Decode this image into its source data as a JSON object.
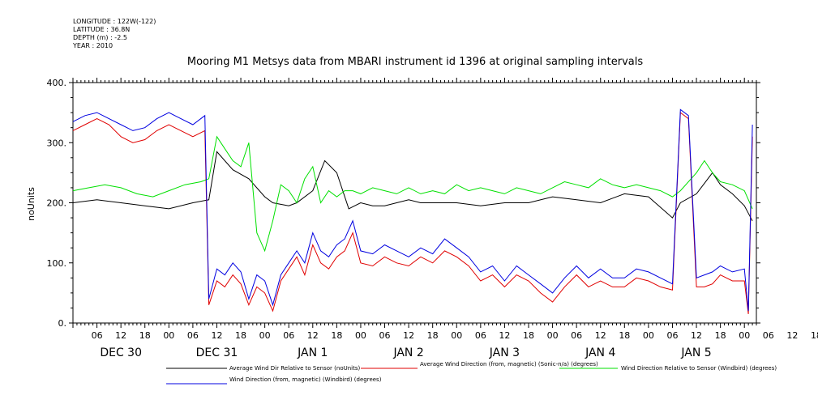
{
  "header": {
    "longitude": "LONGITUDE : 122W(-122)",
    "latitude": "LATITUDE : 36.8N",
    "depth": "DEPTH (m) : -2.5",
    "year": "YEAR : 2010"
  },
  "chart_data": {
    "type": "line",
    "title": "Mooring M1 Metsys data from MBARI instrument id 1396 at original sampling intervals",
    "ylabel": "noUnits",
    "xlabel": "",
    "ylim": [
      0,
      400
    ],
    "xlim_hours": [
      0,
      171
    ],
    "y_ticks": [
      0,
      100,
      200,
      300,
      400
    ],
    "y_tick_labels": [
      "0.",
      "100.",
      "200.",
      "300.",
      "400."
    ],
    "x_hour_tick_labels": [
      "06",
      "12",
      "18",
      "00",
      "06",
      "12",
      "18",
      "00",
      "06",
      "12",
      "18",
      "00",
      "06",
      "12",
      "18",
      "00",
      "06",
      "12",
      "18",
      "00",
      "06",
      "12",
      "18",
      "00",
      "06",
      "12",
      "18",
      "00",
      "06",
      "12",
      "18",
      "00"
    ],
    "x_day_labels": [
      "DEC 30",
      "DEC 31",
      "JAN  1",
      "JAN  2",
      "JAN  3",
      "JAN  4",
      "JAN  5"
    ],
    "grid": false,
    "legend_position": "bottom",
    "series": [
      {
        "name": "Average Wind Dir Relative to Sensor (noUnits)",
        "color": "#000000",
        "x": [
          0,
          6,
          12,
          18,
          24,
          30,
          34,
          36,
          40,
          44,
          48,
          50,
          54,
          56,
          60,
          63,
          66,
          69,
          72,
          75,
          78,
          81,
          84,
          87,
          90,
          96,
          102,
          108,
          114,
          120,
          126,
          132,
          138,
          144,
          150,
          152,
          156,
          160,
          162,
          165,
          168,
          170
        ],
        "y": [
          200,
          205,
          200,
          195,
          190,
          200,
          205,
          285,
          255,
          240,
          210,
          200,
          195,
          200,
          220,
          270,
          250,
          190,
          200,
          195,
          195,
          200,
          205,
          200,
          200,
          200,
          195,
          200,
          200,
          210,
          205,
          200,
          215,
          210,
          175,
          200,
          215,
          250,
          230,
          215,
          195,
          170
        ]
      },
      {
        "name": "Average Wind Direction (from, magnetic) (Sonic-n/a) (degrees)",
        "color": "#e00000",
        "x": [
          0,
          3,
          6,
          9,
          12,
          15,
          18,
          21,
          24,
          27,
          30,
          33,
          34,
          36,
          38,
          40,
          42,
          44,
          46,
          48,
          50,
          52,
          54,
          56,
          58,
          60,
          62,
          64,
          66,
          68,
          70,
          72,
          75,
          78,
          81,
          84,
          87,
          90,
          93,
          96,
          99,
          102,
          105,
          108,
          111,
          114,
          117,
          120,
          123,
          126,
          129,
          132,
          135,
          138,
          141,
          144,
          147,
          150,
          152,
          154,
          156,
          158,
          160,
          162,
          165,
          168,
          169,
          170
        ],
        "y": [
          320,
          330,
          340,
          330,
          310,
          300,
          305,
          320,
          330,
          320,
          310,
          320,
          30,
          70,
          60,
          80,
          65,
          30,
          60,
          50,
          20,
          70,
          90,
          110,
          80,
          130,
          100,
          90,
          110,
          120,
          150,
          100,
          95,
          110,
          100,
          95,
          110,
          100,
          120,
          110,
          95,
          70,
          80,
          60,
          80,
          70,
          50,
          35,
          60,
          80,
          60,
          70,
          60,
          60,
          75,
          70,
          60,
          55,
          350,
          340,
          60,
          60,
          65,
          80,
          70,
          70,
          15,
          310
        ]
      },
      {
        "name": "Wind Direction Relative to Sensor (Windbird) (degrees)",
        "color": "#00e000",
        "x": [
          0,
          4,
          8,
          12,
          16,
          20,
          24,
          28,
          32,
          34,
          36,
          38,
          40,
          42,
          44,
          46,
          48,
          50,
          52,
          54,
          56,
          58,
          60,
          62,
          64,
          66,
          68,
          70,
          72,
          75,
          78,
          81,
          84,
          87,
          90,
          93,
          96,
          99,
          102,
          105,
          108,
          111,
          114,
          117,
          120,
          123,
          126,
          129,
          132,
          135,
          138,
          141,
          144,
          147,
          150,
          152,
          156,
          158,
          160,
          162,
          165,
          168,
          170
        ],
        "y": [
          220,
          225,
          230,
          225,
          215,
          210,
          220,
          230,
          235,
          240,
          310,
          290,
          270,
          260,
          300,
          150,
          120,
          170,
          230,
          220,
          200,
          240,
          260,
          200,
          220,
          210,
          220,
          220,
          215,
          225,
          220,
          215,
          225,
          215,
          220,
          215,
          230,
          220,
          225,
          220,
          215,
          225,
          220,
          215,
          225,
          235,
          230,
          225,
          240,
          230,
          225,
          230,
          225,
          220,
          210,
          220,
          250,
          270,
          250,
          235,
          230,
          220,
          190
        ]
      },
      {
        "name": "Wind Direction (from, magnetic) (Windbird) (degrees)",
        "color": "#0000e0",
        "x": [
          0,
          3,
          6,
          9,
          12,
          15,
          18,
          21,
          24,
          27,
          30,
          33,
          34,
          36,
          38,
          40,
          42,
          44,
          46,
          48,
          50,
          52,
          54,
          56,
          58,
          60,
          62,
          64,
          66,
          68,
          70,
          72,
          75,
          78,
          81,
          84,
          87,
          90,
          93,
          96,
          99,
          102,
          105,
          108,
          111,
          114,
          117,
          120,
          123,
          126,
          129,
          132,
          135,
          138,
          141,
          144,
          147,
          150,
          152,
          154,
          156,
          158,
          160,
          162,
          165,
          168,
          169,
          170
        ],
        "y": [
          335,
          345,
          350,
          340,
          330,
          320,
          325,
          340,
          350,
          340,
          330,
          345,
          40,
          90,
          80,
          100,
          85,
          40,
          80,
          70,
          30,
          80,
          100,
          120,
          100,
          150,
          120,
          110,
          130,
          140,
          170,
          120,
          115,
          130,
          120,
          110,
          125,
          115,
          140,
          125,
          110,
          85,
          95,
          70,
          95,
          80,
          65,
          50,
          75,
          95,
          75,
          90,
          75,
          75,
          90,
          85,
          75,
          65,
          355,
          345,
          75,
          80,
          85,
          95,
          85,
          90,
          20,
          330
        ]
      }
    ]
  }
}
